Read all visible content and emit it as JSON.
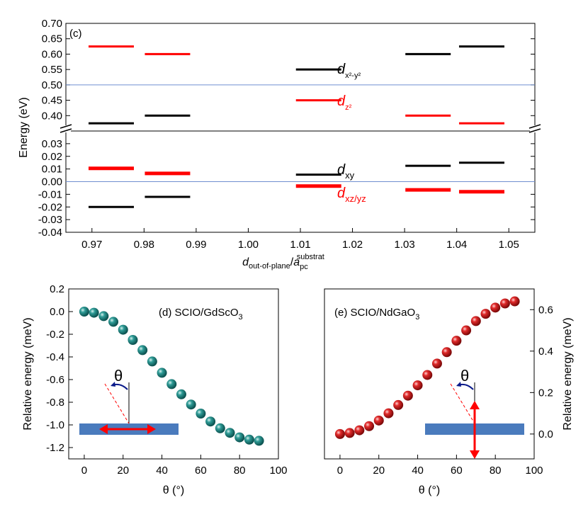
{
  "chart_data": [
    {
      "panel": "(c)",
      "type": "line",
      "ylabel": "Energy  (eV)",
      "xlabel": {
        "main": "d",
        "sub1": "out-of-plane",
        "slash": "/",
        "main2": "a",
        "sub2": "pc",
        "sup2": "substrat"
      },
      "xlim": [
        0.965,
        1.055
      ],
      "x_ticks": [
        0.97,
        0.98,
        0.99,
        1.0,
        1.01,
        1.02,
        1.03,
        1.04,
        1.05
      ],
      "x_tick_labels": [
        "0.97",
        "0.98",
        "0.99",
        "1.00",
        "1.01",
        "1.02",
        "1.03",
        "1.04",
        "1.05"
      ],
      "upper_ylim": [
        0.35,
        0.7
      ],
      "upper_y_ticks": [
        0.4,
        0.45,
        0.5,
        0.55,
        0.6,
        0.65,
        0.7
      ],
      "upper_y_tick_labels": [
        "0.40",
        "0.45",
        "0.50",
        "0.55",
        "0.60",
        "0.65",
        "0.70"
      ],
      "lower_ylim": [
        -0.04,
        0.04
      ],
      "lower_y_ticks": [
        -0.04,
        -0.03,
        -0.02,
        -0.01,
        0.0,
        0.01,
        0.02,
        0.03
      ],
      "lower_y_tick_labels": [
        "-0.04",
        "-0.03",
        "-0.02",
        "-0.01",
        "0.00",
        "0.01",
        "0.02",
        "0.03"
      ],
      "reference_lines": [
        0.5,
        0.0
      ],
      "series": [
        {
          "color": "#ff0000",
          "thick": false,
          "points": [
            [
              0.9737,
              0.625
            ],
            [
              0.9845,
              0.6
            ],
            [
              1.0135,
              0.45
            ],
            [
              1.0345,
              0.4
            ],
            [
              1.0448,
              0.375
            ]
          ]
        },
        {
          "color": "#000000",
          "thick": false,
          "points": [
            [
              0.9737,
              0.375
            ],
            [
              0.9845,
              0.4
            ],
            [
              1.0135,
              0.55
            ],
            [
              1.0345,
              0.6
            ],
            [
              1.0448,
              0.625
            ]
          ]
        },
        {
          "color": "#ff0000",
          "thick": true,
          "points": [
            [
              0.9737,
              0.0105
            ],
            [
              0.9845,
              0.0065
            ],
            [
              1.0135,
              -0.0035
            ],
            [
              1.0345,
              -0.0065
            ],
            [
              1.0448,
              -0.008
            ]
          ]
        },
        {
          "color": "#000000",
          "thick": false,
          "points": [
            [
              0.9737,
              -0.02
            ],
            [
              0.9845,
              -0.012
            ],
            [
              1.0135,
              0.0055
            ],
            [
              1.0345,
              0.0125
            ],
            [
              1.0448,
              0.015
            ]
          ]
        }
      ],
      "labels": {
        "dx2y2": {
          "main": "d",
          "sub": "x²-y²",
          "color": "#000000"
        },
        "dz2": {
          "main": "d",
          "sub": "z²",
          "color": "#ff0000"
        },
        "dxy": {
          "main": "d",
          "sub": "xy",
          "color": "#000000"
        },
        "dxzyz": {
          "main": "d",
          "sub": "xz/yz",
          "color": "#ff0000"
        }
      }
    },
    {
      "panel": "d",
      "type": "scatter",
      "title": "(d) SCIO/GdScO",
      "title_sub": "3",
      "ylabel": "Relative energy  (meV)",
      "xlabel": "θ (°)",
      "xlim": [
        -8,
        100
      ],
      "ylim": [
        -1.3,
        0.2
      ],
      "x_ticks": [
        0,
        20,
        40,
        60,
        80,
        100
      ],
      "x_tick_labels": [
        "0",
        "20",
        "40",
        "60",
        "80",
        "100"
      ],
      "y_ticks": [
        -1.2,
        -1.0,
        -0.8,
        -0.6,
        -0.4,
        -0.2,
        0.0,
        0.2
      ],
      "y_tick_labels": [
        "-1.2",
        "-1.0",
        "-0.8",
        "-0.6",
        "-0.4",
        "-0.2",
        "0.0",
        "0.2"
      ],
      "marker_color": "#137b79",
      "x": [
        0,
        5,
        10,
        15,
        20,
        25,
        30,
        35,
        40,
        45,
        50,
        55,
        60,
        65,
        70,
        75,
        80,
        85,
        90
      ],
      "y": [
        0.0,
        -0.01,
        -0.04,
        -0.09,
        -0.16,
        -0.25,
        -0.34,
        -0.44,
        -0.54,
        -0.64,
        -0.73,
        -0.82,
        -0.9,
        -0.97,
        -1.03,
        -1.07,
        -1.11,
        -1.13,
        -1.14
      ],
      "inset_theta": "θ"
    },
    {
      "panel": "e",
      "type": "scatter",
      "title": "(e) SCIO/NdGaO",
      "title_sub": "3",
      "ylabel": "Relative energy  (meV)",
      "xlabel": "θ (°)",
      "xlim": [
        -8,
        100
      ],
      "ylim": [
        -0.12,
        0.7
      ],
      "x_ticks": [
        0,
        20,
        40,
        60,
        80,
        100
      ],
      "x_tick_labels": [
        "0",
        "20",
        "40",
        "60",
        "80",
        "100"
      ],
      "y_ticks": [
        0.0,
        0.2,
        0.4,
        0.6
      ],
      "y_tick_labels": [
        "0.0",
        "0.2",
        "0.4",
        "0.6"
      ],
      "marker_color": "#c8171b",
      "x": [
        0,
        5,
        10,
        15,
        20,
        25,
        30,
        35,
        40,
        45,
        50,
        55,
        60,
        65,
        70,
        75,
        80,
        85,
        90
      ],
      "y": [
        0.0,
        0.005,
        0.018,
        0.038,
        0.065,
        0.1,
        0.14,
        0.185,
        0.235,
        0.285,
        0.34,
        0.395,
        0.45,
        0.5,
        0.545,
        0.58,
        0.61,
        0.63,
        0.64
      ],
      "inset_theta": "θ"
    }
  ]
}
